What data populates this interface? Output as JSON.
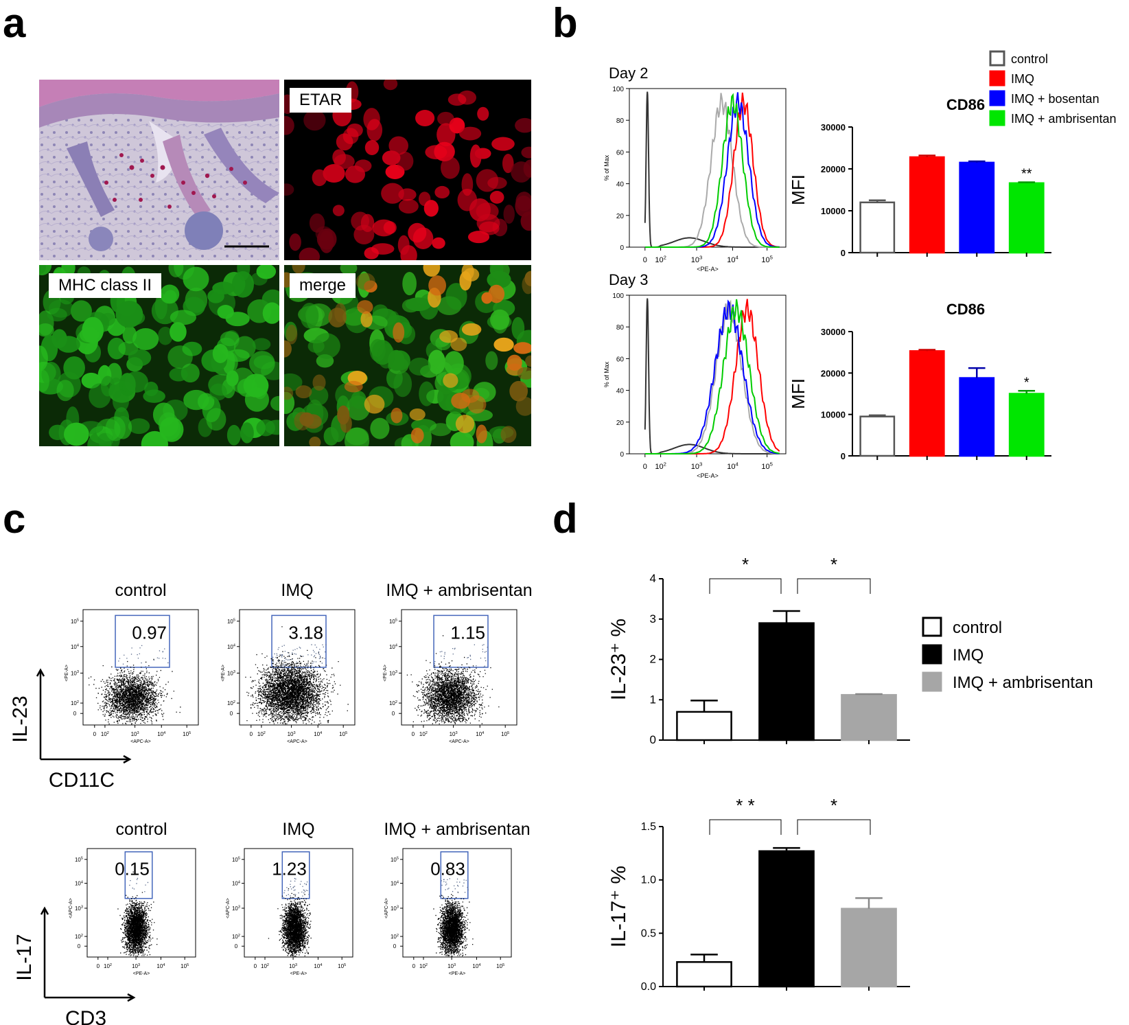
{
  "panels": {
    "a": {
      "letter": "a",
      "images": [
        {
          "label": ""
        },
        {
          "label": "ETAR"
        },
        {
          "label": "MHC class II"
        },
        {
          "label": "merge"
        }
      ]
    },
    "b": {
      "letter": "b"
    },
    "c": {
      "letter": "c"
    },
    "d": {
      "letter": "d"
    }
  },
  "colors": {
    "control": "#ffffff",
    "imq": "#ff0000",
    "bosentan": "#0000ff",
    "ambrisentan": "#00e600",
    "d_imq": "#000000",
    "d_ambrisentan": "#a6a6a6"
  },
  "chart_data": [
    {
      "id": "b-hist-day2",
      "type": "line",
      "title": "Day 2",
      "xlabel": "<PE-A>",
      "ylabel": "% of Max",
      "x_scale": "biexponential",
      "x_ticks": [
        "0",
        "10^2",
        "10^3",
        "10^4",
        "10^5"
      ],
      "ylim": [
        0,
        100
      ],
      "y_ticks": [
        0,
        20,
        40,
        60,
        80,
        100
      ],
      "series": [
        {
          "color": "#333333",
          "peak_x_log": 0.3,
          "width": 0.22,
          "kind": "control"
        },
        {
          "color": "#aaaaaa",
          "peak_x_log": 3.7,
          "width": 0.42,
          "kind": "light-gray"
        },
        {
          "color": "#ff0000",
          "peak_x_log": 4.3,
          "width": 0.38,
          "kind": "IMQ"
        },
        {
          "color": "#0000ff",
          "peak_x_log": 4.15,
          "width": 0.42,
          "kind": "IMQ + bosentan"
        },
        {
          "color": "#00cc00",
          "peak_x_log": 4.0,
          "width": 0.4,
          "kind": "IMQ + ambrisentan"
        }
      ]
    },
    {
      "id": "b-bar-day2",
      "type": "bar",
      "title": "CD86",
      "ylabel": "MFI",
      "ylim": [
        0,
        30000
      ],
      "y_ticks": [
        0,
        10000,
        20000,
        30000
      ],
      "categories": [
        "control",
        "IMQ",
        "IMQ + bosentan",
        "IMQ + ambrisentan"
      ],
      "values": [
        12000,
        22800,
        21500,
        16600
      ],
      "errors": [
        500,
        400,
        300,
        200
      ],
      "significance": [
        "",
        "",
        "",
        "**"
      ],
      "legend": [
        "control",
        "IMQ",
        "IMQ + bosentan",
        "IMQ + ambrisentan"
      ]
    },
    {
      "id": "b-hist-day3",
      "type": "line",
      "title": "Day 3",
      "xlabel": "<PE-A>",
      "ylabel": "% of Max",
      "x_scale": "biexponential",
      "x_ticks": [
        "0",
        "10^2",
        "10^3",
        "10^4",
        "10^5"
      ],
      "ylim": [
        0,
        100
      ],
      "y_ticks": [
        0,
        20,
        40,
        60,
        80,
        100
      ],
      "series": [
        {
          "color": "#333333",
          "peak_x_log": 0.3,
          "width": 0.22,
          "kind": "control"
        },
        {
          "color": "#aaaaaa",
          "peak_x_log": 3.9,
          "width": 0.5,
          "kind": "light-gray"
        },
        {
          "color": "#ff0000",
          "peak_x_log": 4.4,
          "width": 0.45,
          "kind": "IMQ"
        },
        {
          "color": "#0000ff",
          "peak_x_log": 3.9,
          "width": 0.55,
          "kind": "IMQ + bosentan"
        },
        {
          "color": "#00cc00",
          "peak_x_log": 4.1,
          "width": 0.5,
          "kind": "IMQ + ambrisentan"
        }
      ]
    },
    {
      "id": "b-bar-day3",
      "type": "bar",
      "title": "CD86",
      "ylabel": "MFI",
      "ylim": [
        0,
        30000
      ],
      "y_ticks": [
        0,
        10000,
        20000,
        30000
      ],
      "categories": [
        "control",
        "IMQ",
        "IMQ + bosentan",
        "IMQ + ambrisentan"
      ],
      "values": [
        9500,
        25300,
        18800,
        15000
      ],
      "errors": [
        300,
        300,
        2400,
        700
      ],
      "significance": [
        "",
        "",
        "",
        "*"
      ]
    },
    {
      "id": "c-il23",
      "type": "scatter",
      "titles": [
        "control",
        "IMQ",
        "IMQ + ambrisentan"
      ],
      "gate_values": [
        "0.97",
        "3.18",
        "1.15"
      ],
      "xlabel_small": "<APC-A>",
      "ylabel_small": "<PE-A>",
      "axis_x": "CD11C",
      "axis_y": "IL-23",
      "x_ticks": [
        "0",
        "10^2",
        "10^3",
        "10^4",
        "10^5"
      ],
      "y_ticks": [
        "0",
        "10^2",
        "10^3",
        "10^4",
        "10^5"
      ]
    },
    {
      "id": "c-il17",
      "type": "scatter",
      "titles": [
        "control",
        "IMQ",
        "IMQ + ambrisentan"
      ],
      "gate_values": [
        "0.15",
        "1.23",
        "0.83"
      ],
      "xlabel_small": "<PE-A>",
      "ylabel_small": "<APC-A>",
      "axis_x": "CD3",
      "axis_y": "IL-17",
      "x_ticks": [
        "0",
        "10^2",
        "10^3",
        "10^4",
        "10^5"
      ],
      "y_ticks": [
        "0",
        "10^2",
        "10^3",
        "10^4",
        "10^5"
      ]
    },
    {
      "id": "d-il23",
      "type": "bar",
      "ylabel": "IL-23⁺ %",
      "ylim": [
        0,
        4
      ],
      "y_ticks": [
        "0",
        "1",
        "2",
        "3",
        "4"
      ],
      "categories": [
        "control",
        "IMQ",
        "IMQ + ambrisentan"
      ],
      "values": [
        0.7,
        2.9,
        1.12
      ],
      "errors": [
        0.28,
        0.3,
        0.02
      ],
      "brackets": [
        {
          "from": 0,
          "to": 1,
          "label": "*"
        },
        {
          "from": 1,
          "to": 2,
          "label": "*"
        }
      ],
      "legend": [
        "control",
        "IMQ",
        "IMQ + ambrisentan"
      ]
    },
    {
      "id": "d-il17",
      "type": "bar",
      "ylabel": "IL-17⁺ %",
      "ylim": [
        0,
        1.5
      ],
      "y_ticks": [
        "0.0",
        "0.5",
        "1.0",
        "1.5"
      ],
      "categories": [
        "control",
        "IMQ",
        "IMQ + ambrisentan"
      ],
      "values": [
        0.23,
        1.27,
        0.73
      ],
      "errors": [
        0.07,
        0.03,
        0.1
      ],
      "brackets": [
        {
          "from": 0,
          "to": 1,
          "label": "* *"
        },
        {
          "from": 1,
          "to": 2,
          "label": "*"
        }
      ]
    }
  ]
}
